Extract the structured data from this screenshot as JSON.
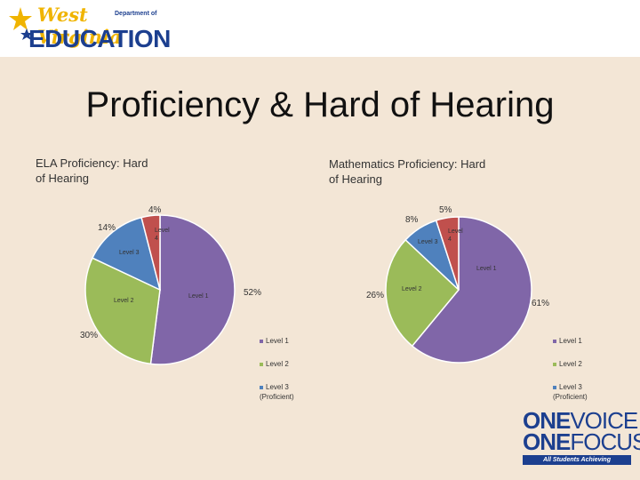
{
  "branding": {
    "logo_state": "West Virginia",
    "logo_dept": "Department of",
    "logo_edu": "EDUCATION",
    "footer_line1a": "ONE",
    "footer_line1b": "VOICE",
    "footer_line2a": "ONE",
    "footer_line2b": "FOCUS",
    "footer_tagline": "All Students Achieving"
  },
  "page": {
    "title": "Proficiency & Hard of Hearing"
  },
  "colors": {
    "level1": "#8066a8",
    "level2": "#9bbb59",
    "level3": "#4f81bd",
    "level4": "#c0504d"
  },
  "chart_data": [
    {
      "type": "pie",
      "title": "ELA Proficiency: Hard of Hearing",
      "slices": [
        {
          "label": "Level 1",
          "value": 52,
          "value_label": "52%"
        },
        {
          "label": "Level 2",
          "value": 30,
          "value_label": "30%"
        },
        {
          "label": "Level 3",
          "value": 14,
          "value_label": "14%"
        },
        {
          "label": "Level 4",
          "value": 4,
          "value_label": "4%"
        }
      ],
      "legend": [
        "Level 1",
        "Level 2",
        "Level 3 (Proficient)"
      ]
    },
    {
      "type": "pie",
      "title": "Mathematics Proficiency: Hard of Hearing",
      "slices": [
        {
          "label": "Level 1",
          "value": 61,
          "value_label": "61%"
        },
        {
          "label": "Level 2",
          "value": 26,
          "value_label": "26%"
        },
        {
          "label": "Level 3",
          "value": 8,
          "value_label": "8%"
        },
        {
          "label": "Level 4",
          "value": 5,
          "value_label": "5%"
        }
      ],
      "legend": [
        "Level 1",
        "Level 2",
        "Level 3 (Proficient)"
      ]
    }
  ]
}
